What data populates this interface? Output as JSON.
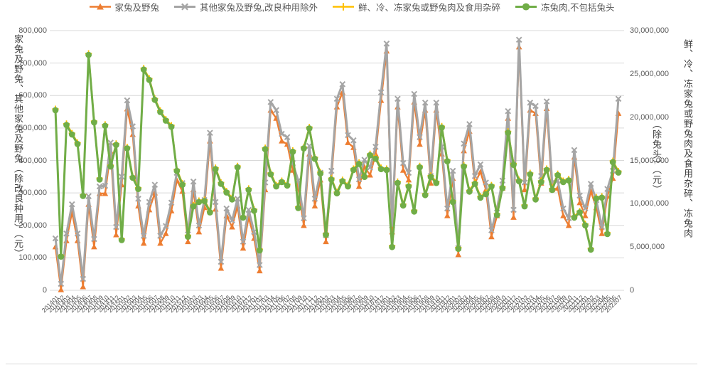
{
  "chart_data": {
    "type": "line",
    "title": "",
    "grid": true,
    "legend_position": "bottom",
    "x_categories": [
      "201401",
      "201402",
      "201403",
      "201404",
      "201405",
      "201406",
      "201407",
      "201408",
      "201409",
      "201410",
      "201411",
      "201412",
      "201501",
      "201502",
      "201503",
      "201504",
      "201505",
      "201506",
      "201507",
      "201508",
      "201509",
      "201510",
      "201511",
      "201512",
      "201601",
      "201602",
      "201603",
      "201604",
      "201605",
      "201606",
      "201607",
      "201608",
      "201609",
      "201610",
      "201611",
      "201612",
      "201701",
      "201702",
      "201703",
      "201704",
      "201705",
      "201706",
      "201707",
      "201708",
      "201709",
      "201710",
      "201711",
      "201712",
      "201801",
      "201802",
      "201803",
      "201804",
      "201805",
      "201806",
      "201807",
      "201808",
      "201809",
      "201810",
      "201811",
      "201812",
      "201901",
      "201902",
      "201903",
      "201904",
      "201905",
      "201906",
      "201907",
      "201908",
      "201909",
      "201910",
      "201911",
      "201912",
      "202001",
      "202002",
      "202003",
      "202004",
      "202005",
      "202006",
      "202007",
      "202008",
      "202009",
      "202010",
      "202011",
      "202012",
      "202101",
      "202102",
      "202103",
      "202104",
      "202105",
      "202106",
      "202107",
      "202108",
      "202109",
      "202110",
      "202111",
      "202112",
      "202201",
      "202202",
      "202203",
      "202204",
      "202205",
      "202206",
      "202207"
    ],
    "axes": {
      "left": {
        "title": "家兔及野兔、其他家兔及野兔（除改良种用）（元）",
        "min": 0,
        "max": 800000,
        "step": 100000,
        "ticks": [
          "0",
          "100,000",
          "200,000",
          "300,000",
          "400,000",
          "500,000",
          "600,000",
          "700,000",
          "800,000"
        ]
      },
      "right": {
        "title": "鲜、冷、冻家兔或野兔肉及食用杂碎、冻兔肉（除兔头）（元）",
        "title_line1": "鲜、冷、冻家兔或野兔肉及食用杂碎、冻兔肉",
        "title_line2": "（除兔头）（元）",
        "min": 0,
        "max": 30000000,
        "step": 5000000,
        "ticks": [
          "0",
          "5,000,000",
          "10,000,000",
          "15,000,000",
          "20,000,000",
          "25,000,000",
          "30,000,000"
        ]
      }
    },
    "series": [
      {
        "name": "家兔及野兔",
        "axis": "left",
        "color": "#ED7D31",
        "marker": "triangle",
        "width": 2.4,
        "values": [
          134000,
          2000,
          153000,
          241000,
          153000,
          11000,
          265000,
          134000,
          298000,
          298000,
          428000,
          171000,
          325000,
          559000,
          480000,
          260000,
          145000,
          248000,
          300000,
          145000,
          175000,
          245000,
          339000,
          305000,
          150000,
          310000,
          180000,
          255000,
          460000,
          250000,
          68000,
          230000,
          195000,
          260000,
          130000,
          225000,
          160000,
          60000,
          310000,
          555000,
          530000,
          460000,
          450000,
          370000,
          315000,
          200000,
          420000,
          260000,
          340000,
          150000,
          345000,
          565000,
          610000,
          455000,
          440000,
          320000,
          380000,
          355000,
          420000,
          585000,
          737000,
          180000,
          565000,
          370000,
          340000,
          580000,
          450000,
          555000,
          330000,
          555000,
          420000,
          230000,
          345000,
          110000,
          430000,
          490000,
          330000,
          365000,
          310000,
          165000,
          230000,
          315000,
          530000,
          225000,
          750000,
          310000,
          555000,
          545000,
          330000,
          560000,
          310000,
          315000,
          230000,
          200000,
          410000,
          270000,
          230000,
          305000,
          255000,
          175000,
          290000,
          345000,
          545000
        ]
      },
      {
        "name": "其他家兔及野兔,改良种用除外",
        "axis": "left",
        "color": "#A5A5A5",
        "marker": "x",
        "width": 3,
        "values": [
          160000,
          20000,
          175000,
          265000,
          175000,
          35000,
          290000,
          158000,
          320000,
          322000,
          455000,
          195000,
          350000,
          585000,
          505000,
          282000,
          168000,
          272000,
          325000,
          168000,
          198000,
          270000,
          362000,
          330000,
          172000,
          335000,
          200000,
          278000,
          485000,
          272000,
          88000,
          252000,
          215000,
          282000,
          150000,
          248000,
          180000,
          78000,
          332000,
          580000,
          555000,
          482000,
          472000,
          392000,
          338000,
          222000,
          445000,
          282000,
          362000,
          170000,
          368000,
          590000,
          635000,
          478000,
          462000,
          342000,
          402000,
          378000,
          442000,
          610000,
          760000,
          200000,
          590000,
          392000,
          362000,
          605000,
          472000,
          578000,
          352000,
          578000,
          442000,
          252000,
          368000,
          130000,
          452000,
          512000,
          352000,
          388000,
          332000,
          185000,
          252000,
          338000,
          552000,
          248000,
          772000,
          332000,
          578000,
          568000,
          352000,
          582000,
          332000,
          338000,
          252000,
          222000,
          432000,
          292000,
          252000,
          328000,
          278000,
          195000,
          312000,
          368000,
          590000
        ]
      },
      {
        "name": "鲜、冷、冻家兔或野兔肉及食用杂碎",
        "axis": "right",
        "color": "#FFC000",
        "marker": "plus",
        "width": 2.4,
        "values": [
          20950000,
          4050000,
          19250000,
          18150000,
          17050000,
          11050000,
          27350000,
          19550000,
          12950000,
          19150000,
          14450000,
          16950000,
          5950000,
          16550000,
          13150000,
          11850000,
          25650000,
          24450000,
          22150000,
          20750000,
          19750000,
          19050000,
          13950000,
          12350000,
          6350000,
          9850000,
          10350000,
          10450000,
          9150000,
          14150000,
          12450000,
          11450000,
          10650000,
          14350000,
          8550000,
          11750000,
          9350000,
          4750000,
          16450000,
          13550000,
          12150000,
          12650000,
          12250000,
          16150000,
          9650000,
          16550000,
          18850000,
          15350000,
          13650000,
          6550000,
          12950000,
          11350000,
          12750000,
          12150000,
          14050000,
          14750000,
          13250000,
          15750000,
          15350000,
          14150000,
          14050000,
          5150000,
          12550000,
          9950000,
          12150000,
          9250000,
          14350000,
          11150000,
          13250000,
          12550000,
          18950000,
          15050000,
          10350000,
          4950000,
          14450000,
          11550000,
          12450000,
          10850000,
          11250000,
          12150000,
          8850000,
          11950000,
          18350000,
          14650000,
          12750000,
          9850000,
          13550000,
          10650000,
          12650000,
          14050000,
          11750000,
          13450000,
          12650000,
          12850000,
          8550000,
          9150000,
          7650000,
          4850000,
          10750000,
          10850000,
          6650000,
          14950000,
          13750000
        ]
      },
      {
        "name": "冻兔肉,不包括兔头",
        "axis": "right",
        "color": "#70AD47",
        "marker": "circle",
        "width": 3,
        "values": [
          20800000,
          3900000,
          19100000,
          18000000,
          16900000,
          10900000,
          27200000,
          19400000,
          12800000,
          19000000,
          14300000,
          16800000,
          5800000,
          16400000,
          13000000,
          11700000,
          25500000,
          24300000,
          22000000,
          20600000,
          19600000,
          18900000,
          13800000,
          12200000,
          6200000,
          9700000,
          10200000,
          10300000,
          9000000,
          14000000,
          12300000,
          11300000,
          10500000,
          14200000,
          8400000,
          11600000,
          9200000,
          4600000,
          16300000,
          13400000,
          12000000,
          12500000,
          12100000,
          16000000,
          9500000,
          16400000,
          18700000,
          15200000,
          13500000,
          6400000,
          12800000,
          11200000,
          12600000,
          12000000,
          13900000,
          14600000,
          13100000,
          15600000,
          15200000,
          14000000,
          13900000,
          5000000,
          12400000,
          9800000,
          12000000,
          9100000,
          14200000,
          11000000,
          13100000,
          12400000,
          18800000,
          14900000,
          10200000,
          4800000,
          14300000,
          11400000,
          12300000,
          10700000,
          11100000,
          12000000,
          8700000,
          11800000,
          18200000,
          14500000,
          12600000,
          9700000,
          13400000,
          10500000,
          12500000,
          13900000,
          11600000,
          13300000,
          12500000,
          12700000,
          8400000,
          9000000,
          7500000,
          4700000,
          10600000,
          10700000,
          6500000,
          14800000,
          13600000
        ]
      }
    ],
    "style": {
      "gridline_color": "#d9d9d9",
      "tick_label_color": "#595959",
      "axis_title_color": "#404040"
    }
  }
}
